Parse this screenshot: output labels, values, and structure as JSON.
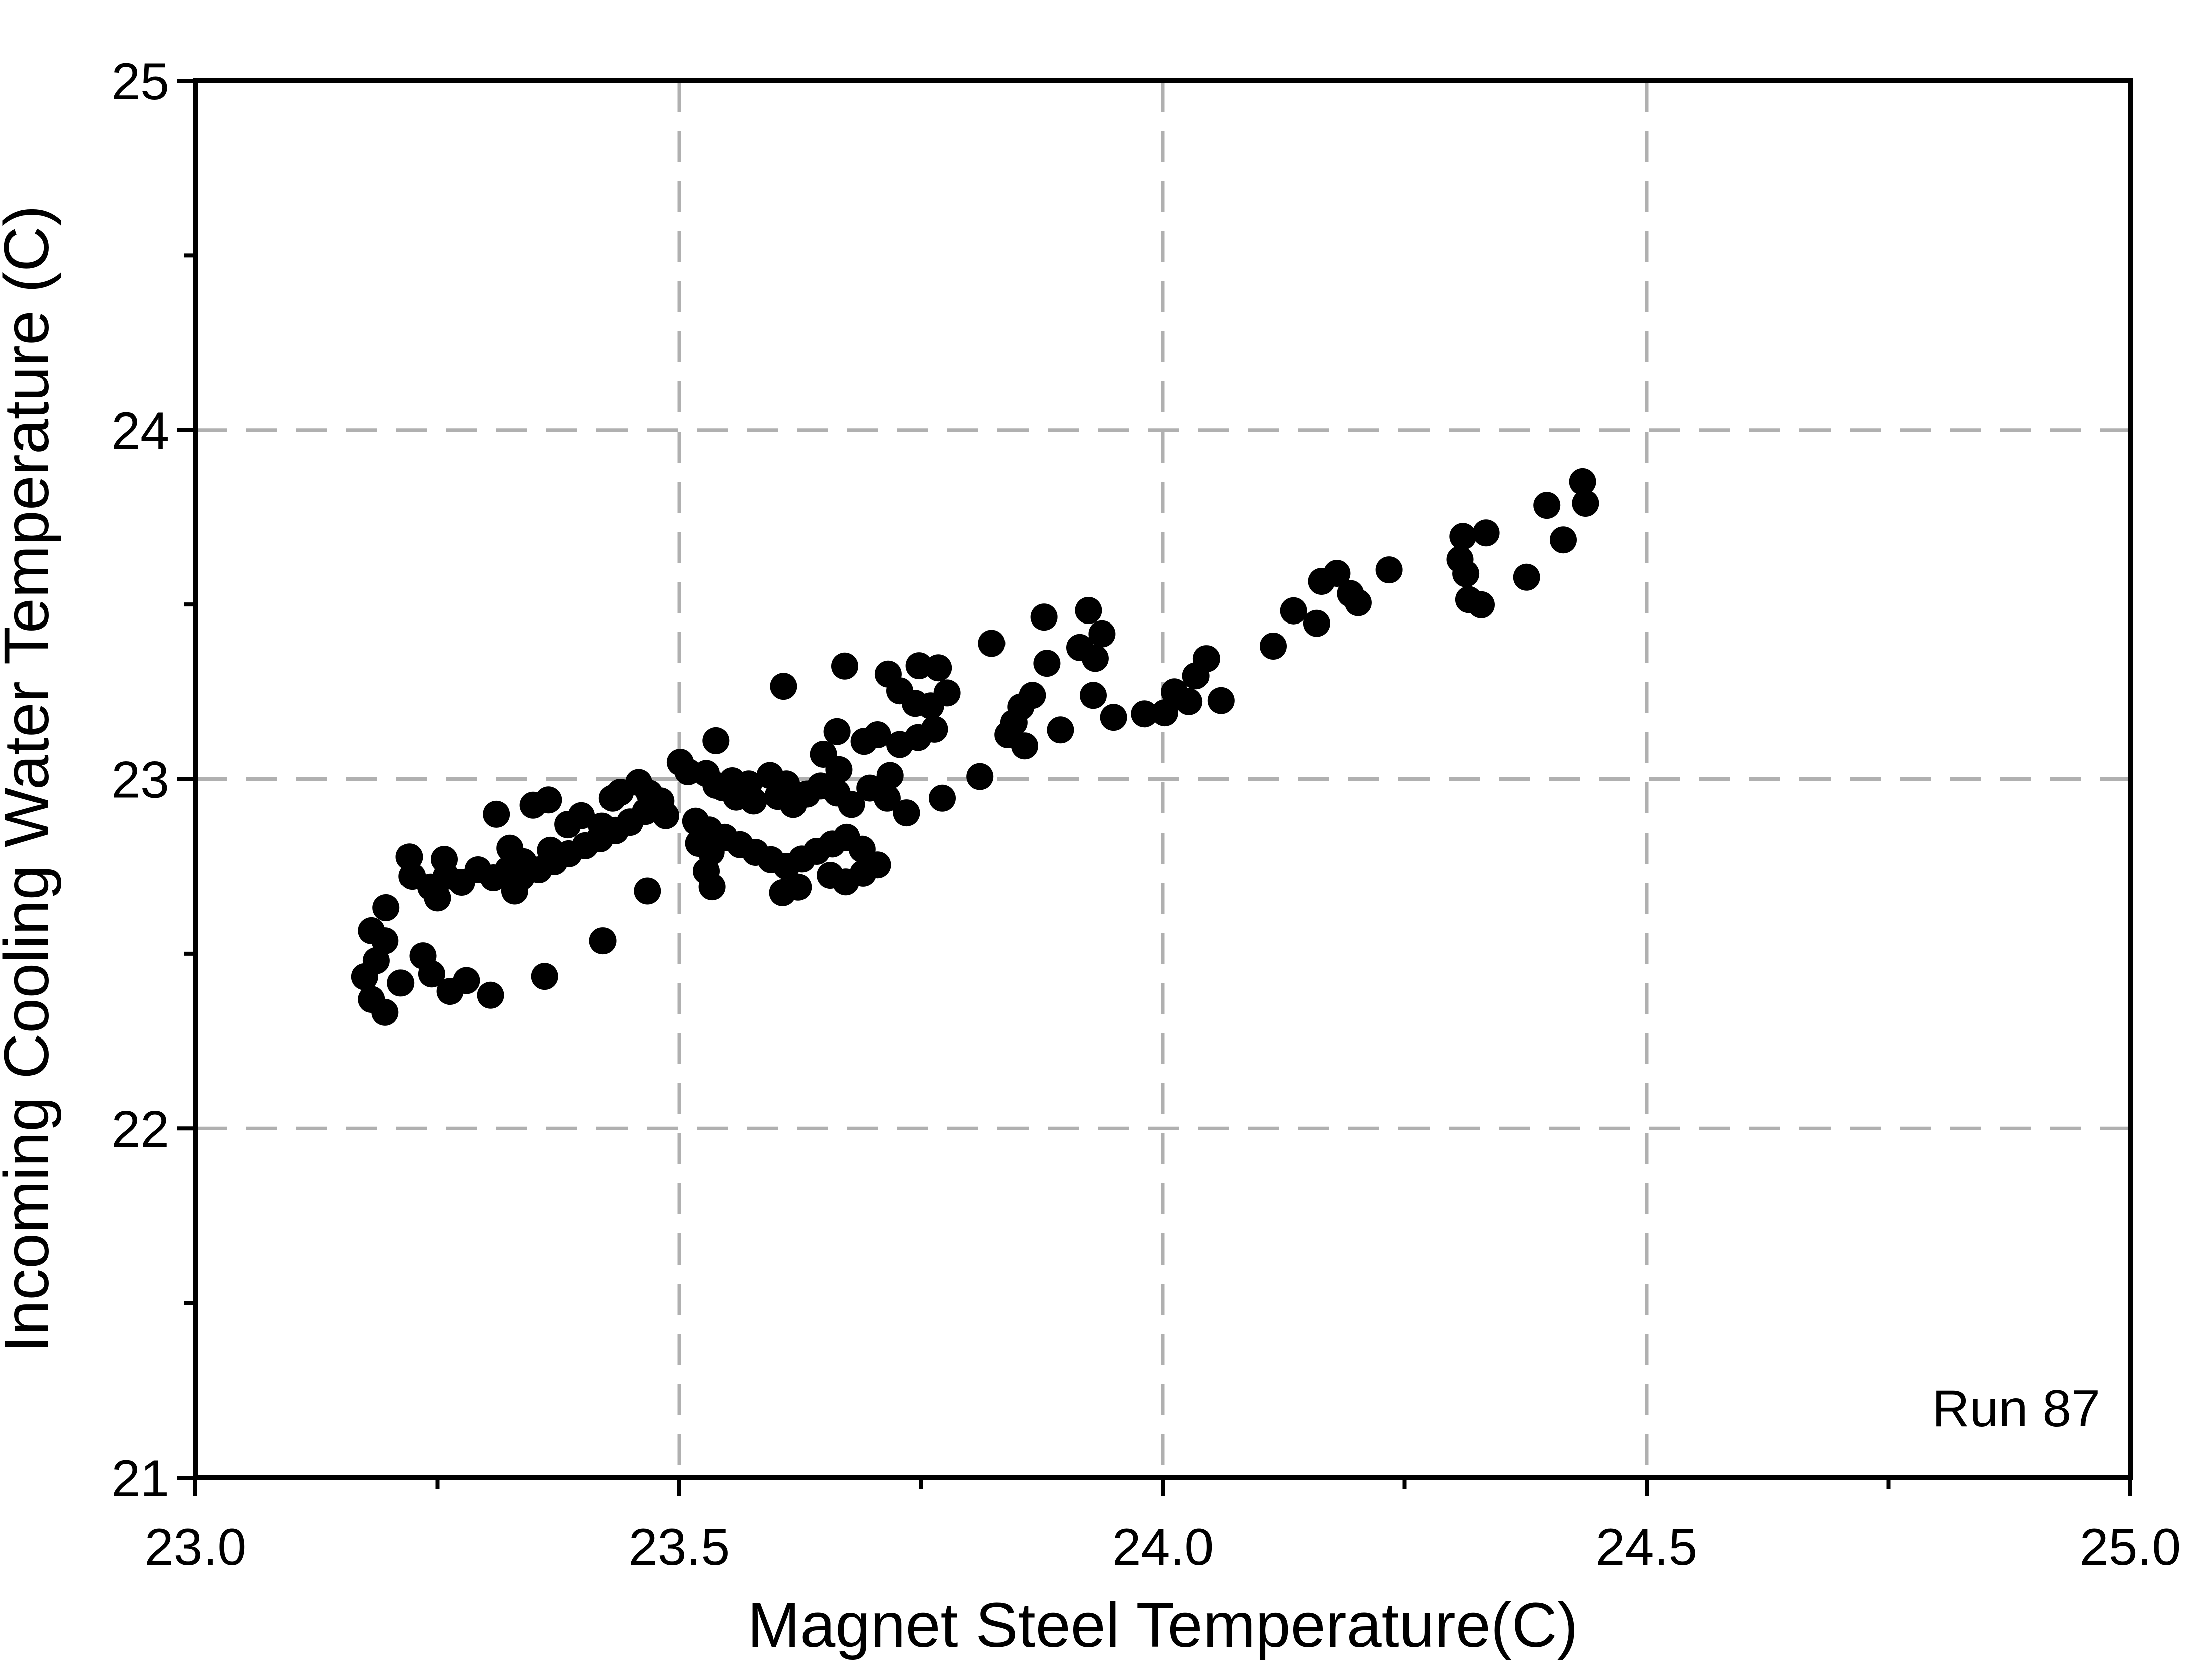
{
  "chart_data": {
    "type": "scatter",
    "title": "",
    "xlabel": "Magnet Steel Temperature(C)",
    "ylabel": "Incoming Cooling Water Temperature (C)",
    "annotation": "Run 87",
    "xlim": [
      23.0,
      25.0
    ],
    "ylim": [
      21.0,
      25.0
    ],
    "x_major_ticks": [
      23.0,
      23.5,
      24.0,
      24.5,
      25.0
    ],
    "x_tick_labels": [
      "23.0",
      "23.5",
      "24.0",
      "24.5",
      "25.0"
    ],
    "x_minor_ticks": [
      23.25,
      23.75,
      24.25,
      24.75
    ],
    "y_major_ticks": [
      21,
      22,
      23,
      24,
      25
    ],
    "y_tick_labels": [
      "21",
      "22",
      "23",
      "24",
      "25"
    ],
    "y_minor_ticks": [
      21.5,
      22.5,
      23.5,
      24.5
    ],
    "grid": {
      "x_lines": [
        23.5,
        24.0,
        24.5
      ],
      "y_lines": [
        22,
        23,
        24
      ],
      "style": "dashed",
      "color": "#b0b0b0"
    },
    "legend": "none",
    "marker": {
      "shape": "circle",
      "color": "#000000",
      "radius_px": 27
    },
    "points": [
      [
        23.197,
        22.632
      ],
      [
        23.182,
        22.566
      ],
      [
        23.196,
        22.537
      ],
      [
        23.187,
        22.48
      ],
      [
        23.175,
        22.434
      ],
      [
        23.182,
        22.369
      ],
      [
        23.196,
        22.332
      ],
      [
        23.212,
        22.416
      ],
      [
        23.235,
        22.494
      ],
      [
        23.244,
        22.442
      ],
      [
        23.263,
        22.392
      ],
      [
        23.28,
        22.423
      ],
      [
        23.305,
        22.381
      ],
      [
        23.361,
        22.435
      ],
      [
        23.421,
        22.537
      ],
      [
        23.467,
        22.68
      ],
      [
        23.224,
        22.722
      ],
      [
        23.243,
        22.691
      ],
      [
        23.259,
        22.722
      ],
      [
        23.275,
        22.705
      ],
      [
        23.25,
        22.66
      ],
      [
        23.292,
        22.741
      ],
      [
        23.308,
        22.718
      ],
      [
        23.221,
        22.778
      ],
      [
        23.257,
        22.771
      ],
      [
        23.33,
        22.68
      ],
      [
        23.323,
        22.741
      ],
      [
        23.339,
        22.764
      ],
      [
        23.355,
        22.741
      ],
      [
        23.371,
        22.764
      ],
      [
        23.386,
        22.787
      ],
      [
        23.403,
        22.81
      ],
      [
        23.418,
        22.83
      ],
      [
        23.434,
        22.853
      ],
      [
        23.449,
        22.877
      ],
      [
        23.311,
        22.899
      ],
      [
        23.349,
        22.925
      ],
      [
        23.365,
        22.94
      ],
      [
        23.325,
        22.803
      ],
      [
        23.337,
        22.72
      ],
      [
        23.367,
        22.797
      ],
      [
        23.385,
        22.87
      ],
      [
        23.399,
        22.895
      ],
      [
        23.42,
        22.865
      ],
      [
        23.431,
        22.945
      ],
      [
        23.439,
        22.962
      ],
      [
        23.458,
        22.99
      ],
      [
        23.469,
        22.959
      ],
      [
        23.481,
        22.937
      ],
      [
        23.486,
        22.895
      ],
      [
        23.465,
        22.907
      ],
      [
        23.501,
        23.048
      ],
      [
        23.509,
        23.021
      ],
      [
        23.528,
        23.016
      ],
      [
        23.538,
        22.982
      ],
      [
        23.52,
        22.817
      ],
      [
        23.533,
        22.792
      ],
      [
        23.528,
        22.737
      ],
      [
        23.534,
        22.692
      ],
      [
        23.517,
        22.879
      ],
      [
        23.531,
        22.854
      ],
      [
        23.538,
        23.11
      ],
      [
        23.545,
        22.975
      ],
      [
        23.555,
        22.995
      ],
      [
        23.572,
        22.986
      ],
      [
        23.559,
        22.948
      ],
      [
        23.577,
        22.937
      ],
      [
        23.594,
        23.01
      ],
      [
        23.611,
        22.986
      ],
      [
        23.602,
        22.95
      ],
      [
        23.618,
        22.927
      ],
      [
        23.632,
        22.957
      ],
      [
        23.646,
        22.98
      ],
      [
        23.663,
        22.96
      ],
      [
        23.678,
        22.927
      ],
      [
        23.697,
        22.974
      ],
      [
        23.649,
        23.071
      ],
      [
        23.665,
        23.027
      ],
      [
        23.691,
        23.108
      ],
      [
        23.705,
        23.127
      ],
      [
        23.663,
        23.136
      ],
      [
        23.547,
        22.833
      ],
      [
        23.563,
        22.813
      ],
      [
        23.579,
        22.791
      ],
      [
        23.595,
        22.77
      ],
      [
        23.611,
        22.751
      ],
      [
        23.627,
        22.772
      ],
      [
        23.642,
        22.794
      ],
      [
        23.658,
        22.815
      ],
      [
        23.673,
        22.833
      ],
      [
        23.689,
        22.8
      ],
      [
        23.656,
        22.725
      ],
      [
        23.672,
        22.706
      ],
      [
        23.69,
        22.731
      ],
      [
        23.705,
        22.755
      ],
      [
        23.623,
        22.691
      ],
      [
        23.607,
        22.675
      ],
      [
        23.608,
        23.266
      ],
      [
        23.671,
        23.324
      ],
      [
        23.716,
        23.301
      ],
      [
        23.728,
        23.253
      ],
      [
        23.748,
        23.325
      ],
      [
        23.768,
        23.319
      ],
      [
        23.744,
        23.217
      ],
      [
        23.76,
        23.21
      ],
      [
        23.777,
        23.247
      ],
      [
        23.728,
        23.099
      ],
      [
        23.747,
        23.119
      ],
      [
        23.764,
        23.143
      ],
      [
        23.718,
        23.01
      ],
      [
        23.735,
        22.903
      ],
      [
        23.772,
        22.945
      ],
      [
        23.715,
        22.945
      ],
      [
        23.811,
        23.007
      ],
      [
        23.823,
        23.389
      ],
      [
        23.84,
        23.127
      ],
      [
        23.846,
        23.162
      ],
      [
        23.853,
        23.207
      ],
      [
        23.857,
        23.095
      ],
      [
        23.865,
        23.24
      ],
      [
        23.877,
        23.464
      ],
      [
        23.88,
        23.332
      ],
      [
        23.894,
        23.141
      ],
      [
        23.914,
        23.377
      ],
      [
        23.923,
        23.483
      ],
      [
        23.928,
        23.24
      ],
      [
        23.93,
        23.346
      ],
      [
        23.937,
        23.416
      ],
      [
        23.949,
        23.177
      ],
      [
        23.981,
        23.187
      ],
      [
        24.012,
        23.25
      ],
      [
        24.034,
        23.296
      ],
      [
        24.045,
        23.345
      ],
      [
        24.027,
        23.222
      ],
      [
        24.06,
        23.225
      ],
      [
        24.002,
        23.19
      ],
      [
        24.114,
        23.381
      ],
      [
        24.135,
        23.482
      ],
      [
        24.159,
        23.446
      ],
      [
        24.164,
        23.566
      ],
      [
        24.18,
        23.589
      ],
      [
        24.194,
        23.531
      ],
      [
        24.202,
        23.505
      ],
      [
        24.234,
        23.599
      ],
      [
        24.31,
        23.695
      ],
      [
        24.334,
        23.705
      ],
      [
        24.307,
        23.629
      ],
      [
        24.313,
        23.588
      ],
      [
        24.316,
        23.514
      ],
      [
        24.329,
        23.499
      ],
      [
        24.376,
        23.578
      ],
      [
        24.397,
        23.784
      ],
      [
        24.414,
        23.685
      ],
      [
        24.434,
        23.852
      ],
      [
        24.437,
        23.79
      ]
    ]
  },
  "colors": {
    "background": "#ffffff",
    "axis": "#000000",
    "text": "#000000",
    "grid": "#b0b0b0",
    "marker": "#000000"
  }
}
